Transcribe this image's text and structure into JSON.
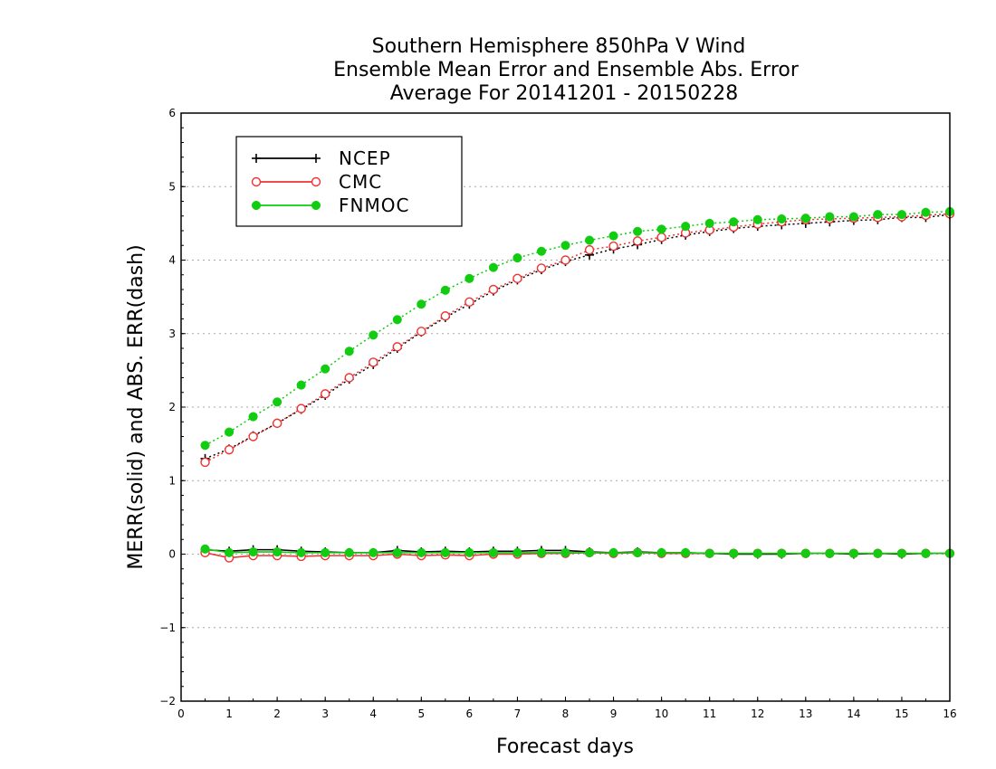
{
  "chart_data": {
    "type": "line",
    "title": [
      "Southern Hemisphere 850hPa V Wind",
      "Ensemble Mean Error and Ensemble Abs. Error",
      "Average For 20141201 - 20150228"
    ],
    "xlabel": "Forecast days",
    "ylabel": "MERR(solid) and ABS. ERR(dash)",
    "xlim": [
      0,
      16
    ],
    "ylim": [
      -2,
      6
    ],
    "xticks": [
      "0",
      "1",
      "2",
      "3",
      "4",
      "5",
      "6",
      "7",
      "8",
      "9",
      "10",
      "11",
      "12",
      "13",
      "14",
      "15",
      "16"
    ],
    "yticks": [
      "-2",
      "-1",
      "0",
      "1",
      "2",
      "3",
      "4",
      "5",
      "6"
    ],
    "grid": true,
    "legend_position": "top-left",
    "x": [
      0.5,
      1,
      1.5,
      2,
      2.5,
      3,
      3.5,
      4,
      4.5,
      5,
      5.5,
      6,
      6.5,
      7,
      7.5,
      8,
      8.5,
      9,
      9.5,
      10,
      10.5,
      11,
      11.5,
      12,
      12.5,
      13,
      13.5,
      14,
      14.5,
      15,
      15.5,
      16
    ],
    "series": [
      {
        "name": "NCEP",
        "color": "#000000",
        "marker": "plus",
        "merr": [
          0.06,
          0.04,
          0.06,
          0.06,
          0.04,
          0.03,
          0.02,
          0.02,
          0.05,
          0.03,
          0.04,
          0.03,
          0.04,
          0.04,
          0.05,
          0.05,
          0.03,
          0.02,
          0.03,
          0.02,
          0.02,
          0.01,
          0.0,
          0.0,
          0.0,
          0.01,
          0.01,
          0.0,
          0.01,
          0.0,
          0.01,
          0.01
        ],
        "abs_err": [
          1.3,
          1.43,
          1.61,
          1.78,
          1.97,
          2.16,
          2.38,
          2.58,
          2.8,
          3.02,
          3.22,
          3.4,
          3.58,
          3.73,
          3.87,
          3.98,
          4.07,
          4.15,
          4.21,
          4.28,
          4.34,
          4.39,
          4.43,
          4.46,
          4.48,
          4.5,
          4.52,
          4.54,
          4.55,
          4.58,
          4.58,
          4.62
        ]
      },
      {
        "name": "CMC",
        "color": "#ee3333",
        "marker": "open-circle",
        "merr": [
          0.02,
          -0.05,
          -0.02,
          -0.02,
          -0.03,
          -0.02,
          -0.02,
          -0.02,
          0.0,
          -0.02,
          -0.01,
          -0.02,
          0.0,
          0.0,
          0.01,
          0.01,
          0.02,
          0.01,
          0.02,
          0.01,
          0.01,
          0.01,
          0.01,
          0.01,
          0.01,
          0.01,
          0.01,
          0.01,
          0.01,
          0.01,
          0.01,
          0.01
        ],
        "abs_err": [
          1.25,
          1.42,
          1.6,
          1.78,
          1.98,
          2.18,
          2.4,
          2.61,
          2.82,
          3.03,
          3.24,
          3.43,
          3.6,
          3.75,
          3.89,
          4.0,
          4.14,
          4.19,
          4.26,
          4.31,
          4.37,
          4.41,
          4.45,
          4.49,
          4.52,
          4.55,
          4.56,
          4.57,
          4.58,
          4.59,
          4.61,
          4.63
        ]
      },
      {
        "name": "FNMOC",
        "color": "#11cc11",
        "marker": "filled-circle",
        "merr": [
          0.07,
          0.02,
          0.03,
          0.03,
          0.02,
          0.02,
          0.02,
          0.02,
          0.02,
          0.02,
          0.02,
          0.02,
          0.02,
          0.02,
          0.02,
          0.02,
          0.02,
          0.02,
          0.02,
          0.02,
          0.02,
          0.01,
          0.01,
          0.01,
          0.01,
          0.01,
          0.01,
          0.01,
          0.01,
          0.01,
          0.01,
          0.01
        ],
        "abs_err": [
          1.48,
          1.66,
          1.87,
          2.07,
          2.3,
          2.52,
          2.76,
          2.98,
          3.19,
          3.4,
          3.59,
          3.75,
          3.9,
          4.03,
          4.12,
          4.2,
          4.27,
          4.33,
          4.39,
          4.42,
          4.46,
          4.5,
          4.52,
          4.55,
          4.56,
          4.57,
          4.59,
          4.59,
          4.62,
          4.62,
          4.65,
          4.66
        ]
      }
    ]
  }
}
